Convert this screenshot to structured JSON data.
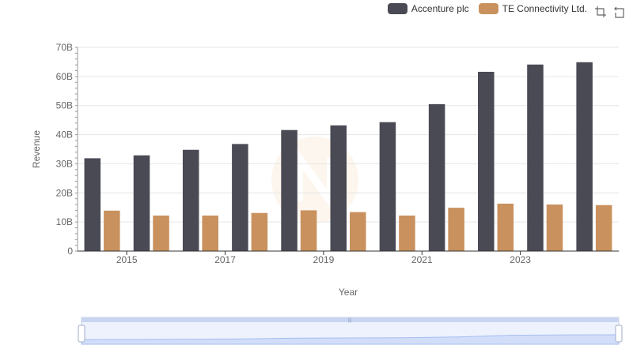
{
  "legend": {
    "items": [
      {
        "label": "Accenture plc",
        "color": "#4a4a55"
      },
      {
        "label": "TE Connectivity Ltd.",
        "color": "#c9915e"
      }
    ]
  },
  "toolbox": {
    "icons": [
      "zoom-icon",
      "restore-icon"
    ]
  },
  "colors": {
    "accent": "#4a4a55",
    "secondary": "#c9915e",
    "grid": "#e6e6e6",
    "slider_fill": "#d6e2fb"
  },
  "chart_data": {
    "type": "bar",
    "categories": [
      "2014",
      "2015",
      "2016",
      "2017",
      "2018",
      "2019",
      "2020",
      "2021",
      "2022",
      "2023",
      "2024"
    ],
    "x_tick_labels": [
      "2015",
      "2017",
      "2019",
      "2021",
      "2023"
    ],
    "series": [
      {
        "name": "Accenture plc",
        "color": "#4a4a55",
        "values": [
          31.9,
          32.9,
          34.8,
          36.8,
          41.6,
          43.2,
          44.3,
          50.5,
          61.6,
          64.1,
          64.9
        ]
      },
      {
        "name": "TE Connectivity Ltd.",
        "color": "#c9915e",
        "values": [
          13.9,
          12.2,
          12.2,
          13.1,
          14.0,
          13.4,
          12.2,
          14.9,
          16.3,
          16.0,
          15.8
        ]
      }
    ],
    "ylabel": "Revenue",
    "xlabel": "Year",
    "ylim": [
      0,
      70
    ],
    "y_ticks": [
      "0",
      "10B",
      "20B",
      "30B",
      "40B",
      "50B",
      "60B",
      "70B"
    ],
    "grid": true,
    "legend_position": "top-right"
  }
}
